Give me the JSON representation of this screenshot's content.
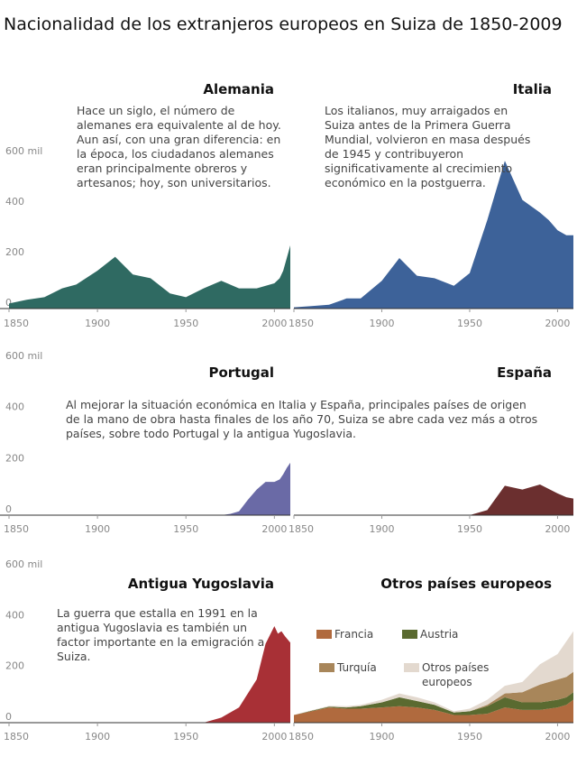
{
  "title": "Nacionalidad de los extranjeros europeos en Suiza de 1850-2009",
  "chart_data": [
    {
      "type": "area",
      "title": "Alemania",
      "annotation": "Hace un siglo, el número de alemanes era equivalente al de hoy. Aun así, con una gran diferencia: en la época, los ciudadanos alemanes eran principalmente obreros y artesanos; hoy, son universitarios.",
      "color": "#2f6a62",
      "x": [
        1850,
        1860,
        1870,
        1880,
        1888,
        1900,
        1910,
        1920,
        1930,
        1941,
        1950,
        1960,
        1970,
        1980,
        1990,
        2000,
        2003,
        2005,
        2007,
        2009
      ],
      "values": [
        20,
        35,
        45,
        80,
        95,
        150,
        205,
        135,
        120,
        60,
        45,
        80,
        110,
        80,
        80,
        100,
        120,
        150,
        200,
        250
      ],
      "yticks": [
        "600 mil",
        "400",
        "200",
        "0"
      ],
      "ylim": [
        0,
        600000
      ],
      "xticks": [
        "1850",
        "1900",
        "1950",
        "2000"
      ]
    },
    {
      "type": "area",
      "title": "Italia",
      "annotation": "Los italianos, muy arraigados en Suiza antes de la Primera Guerra Mundial, volvieron en masa después de 1945 y contribuyeron significativamente al crecimiento económico en la postguerra.",
      "color": "#3d6299",
      "x": [
        1850,
        1860,
        1870,
        1880,
        1888,
        1900,
        1910,
        1920,
        1930,
        1941,
        1950,
        1960,
        1970,
        1980,
        1990,
        1995,
        2000,
        2005,
        2009
      ],
      "values": [
        5,
        10,
        15,
        40,
        40,
        110,
        200,
        130,
        120,
        90,
        140,
        350,
        585,
        430,
        380,
        350,
        310,
        290,
        290
      ],
      "ylim": [
        0,
        600000
      ],
      "xticks": [
        "1850",
        "1900",
        "1950",
        "2000"
      ]
    },
    {
      "type": "area",
      "title": "Portugal",
      "color": "#6a6aa6",
      "x": [
        1850,
        1950,
        1960,
        1970,
        1975,
        1980,
        1985,
        1990,
        1995,
        2000,
        2003,
        2005,
        2007,
        2009
      ],
      "values": [
        0,
        0,
        0,
        0,
        5,
        15,
        60,
        100,
        130,
        130,
        140,
        160,
        185,
        205
      ],
      "yticks": [
        "600 mil",
        "400",
        "200",
        "0"
      ],
      "ylim": [
        0,
        600000
      ],
      "xticks": [
        "1850",
        "1900",
        "1950",
        "2000"
      ]
    },
    {
      "type": "area",
      "title": "España",
      "color": "#6b2f2f",
      "x": [
        1850,
        1950,
        1960,
        1970,
        1980,
        1990,
        2000,
        2005,
        2009
      ],
      "values": [
        0,
        0,
        20,
        115,
        100,
        120,
        85,
        70,
        65
      ],
      "ylim": [
        0,
        600000
      ],
      "xticks": [
        "1850",
        "1900",
        "1950",
        "2000"
      ]
    },
    {
      "type": "area",
      "title": "Antigua Yugoslavia",
      "annotation": "La guerra que estalla en 1991 en la antigua Yugoslavia es también un factor importante en la emigración a Suiza.",
      "color": "#a83036",
      "x": [
        1850,
        1960,
        1970,
        1980,
        1990,
        1995,
        2000,
        2002,
        2004,
        2006,
        2009
      ],
      "values": [
        0,
        0,
        20,
        60,
        170,
        310,
        380,
        350,
        360,
        340,
        315
      ],
      "yticks": [
        "600 mil",
        "400",
        "200",
        "0"
      ],
      "ylim": [
        0,
        600000
      ],
      "xticks": [
        "1850",
        "1900",
        "1950",
        "2000"
      ]
    },
    {
      "type": "area",
      "title": "Otros países europeos",
      "ylim": [
        0,
        600000
      ],
      "xticks": [
        "1850",
        "1900",
        "1950",
        "2000"
      ],
      "x": [
        1850,
        1860,
        1870,
        1880,
        1888,
        1900,
        1910,
        1920,
        1930,
        1941,
        1950,
        1960,
        1970,
        1980,
        1990,
        2000,
        2005,
        2009
      ],
      "series": [
        {
          "name": "Francia",
          "color": "#b06a3e",
          "values": [
            30,
            45,
            60,
            55,
            55,
            60,
            65,
            60,
            50,
            30,
            30,
            35,
            60,
            50,
            50,
            60,
            70,
            90
          ]
        },
        {
          "name": "Austria",
          "color": "#5a6a30",
          "values": [
            0,
            2,
            3,
            5,
            10,
            20,
            35,
            25,
            20,
            10,
            15,
            30,
            40,
            30,
            30,
            30,
            30,
            30
          ]
        },
        {
          "name": "Turquía",
          "color": "#a8865a",
          "values": [
            0,
            0,
            0,
            0,
            0,
            0,
            0,
            0,
            0,
            0,
            0,
            5,
            15,
            40,
            70,
            80,
            80,
            80
          ]
        },
        {
          "name": "Otros países europeos",
          "color": "#e3d9cf",
          "values": [
            0,
            2,
            3,
            5,
            5,
            10,
            15,
            15,
            10,
            5,
            10,
            20,
            30,
            40,
            80,
            100,
            140,
            160
          ]
        }
      ]
    }
  ]
}
